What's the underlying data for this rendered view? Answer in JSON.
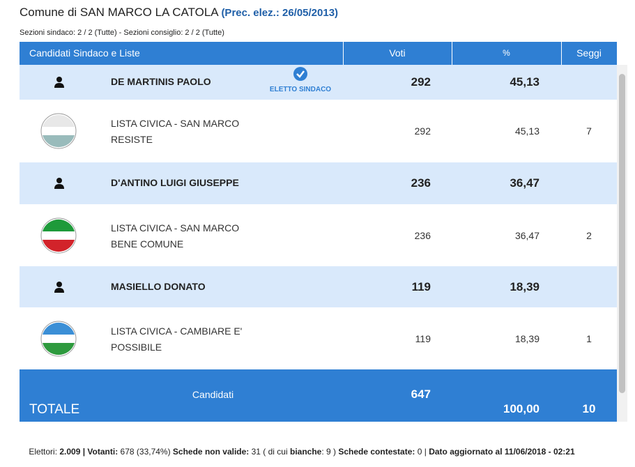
{
  "header": {
    "title": "Comune di SAN MARCO LA CATOLA",
    "prec": "(Prec. elez.: 26/05/2013)",
    "subtitle": "Sezioni sindaco: 2 / 2 (Tutte) - Sezioni consiglio: 2 / 2 (Tutte)"
  },
  "table": {
    "columns": [
      "Candidati Sindaco e Liste",
      "Voti",
      "%",
      "Seggi"
    ],
    "candidates": [
      {
        "name": "DE MARTINIS PAOLO",
        "badge": "ELETTO SINDACO",
        "voti": "292",
        "pct": "45,13",
        "list": {
          "name": "LISTA CIVICA - SAN MARCO RESISTE",
          "voti": "292",
          "pct": "45,13",
          "seggi": "7"
        }
      },
      {
        "name": "D'ANTINO LUIGI GIUSEPPE",
        "voti": "236",
        "pct": "36,47",
        "list": {
          "name": "LISTA CIVICA - SAN MARCO BENE COMUNE",
          "voti": "236",
          "pct": "36,47",
          "seggi": "2"
        }
      },
      {
        "name": "MASIELLO DONATO",
        "voti": "119",
        "pct": "18,39",
        "list": {
          "name": "LISTA CIVICA - CAMBIARE E' POSSIBILE",
          "voti": "119",
          "pct": "18,39",
          "seggi": "1"
        }
      }
    ],
    "total": {
      "label": "TOTALE",
      "sub": "Candidati",
      "voti": "647",
      "pct": "100,00",
      "seggi": "10"
    }
  },
  "footer": [
    "Elettori: ",
    "2.009",
    " | ",
    "Votanti:",
    " 678 (33,74%) ",
    "Schede non valide:",
    " 31 ( di cui ",
    "bianche",
    ": 9 ) ",
    "Schede contestate:",
    " 0 | ",
    "Dato aggiornato al 11/06/2018 - 02:21"
  ]
}
